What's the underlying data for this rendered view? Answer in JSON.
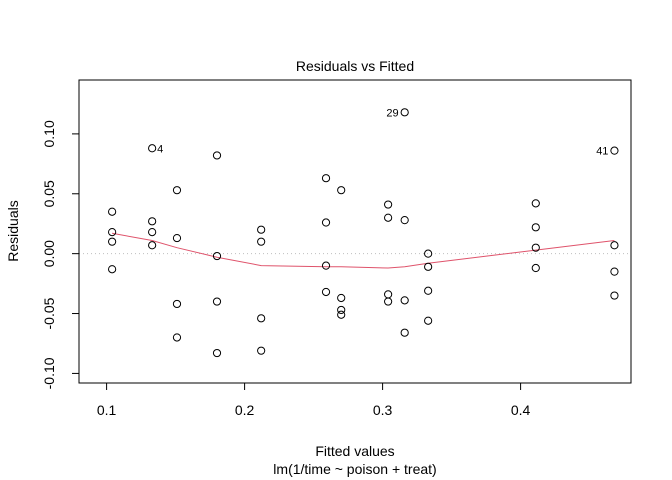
{
  "chart_data": {
    "type": "scatter",
    "title": "Residuals vs Fitted",
    "xlabel": "Fitted values",
    "sublabel": "lm(1/time ~ poison + treat)",
    "ylabel": "Residuals",
    "xlim": [
      0.08,
      0.48
    ],
    "ylim": [
      -0.108,
      0.145
    ],
    "x_ticks": [
      0.1,
      0.2,
      0.3,
      0.4
    ],
    "x_tick_labels": [
      "0.1",
      "0.2",
      "0.3",
      "0.4"
    ],
    "y_ticks": [
      -0.1,
      -0.05,
      0.0,
      0.05,
      0.1
    ],
    "y_tick_labels": [
      "-0.10",
      "-0.05",
      "0.00",
      "0.05",
      "0.10"
    ],
    "reference_line_y": 0,
    "grid": false,
    "colors": {
      "points": "#000000",
      "smooth": "#DF536B",
      "reference": "#BEBEBE"
    },
    "points": [
      {
        "x": 0.104,
        "y": 0.035
      },
      {
        "x": 0.104,
        "y": 0.018
      },
      {
        "x": 0.104,
        "y": 0.01
      },
      {
        "x": 0.104,
        "y": -0.013
      },
      {
        "x": 0.133,
        "y": 0.088,
        "label": "4"
      },
      {
        "x": 0.133,
        "y": 0.027
      },
      {
        "x": 0.133,
        "y": 0.018
      },
      {
        "x": 0.133,
        "y": 0.007
      },
      {
        "x": 0.151,
        "y": 0.053
      },
      {
        "x": 0.151,
        "y": 0.013
      },
      {
        "x": 0.151,
        "y": -0.042
      },
      {
        "x": 0.151,
        "y": -0.07
      },
      {
        "x": 0.18,
        "y": 0.082
      },
      {
        "x": 0.18,
        "y": -0.002
      },
      {
        "x": 0.18,
        "y": -0.04
      },
      {
        "x": 0.18,
        "y": -0.083
      },
      {
        "x": 0.212,
        "y": 0.02
      },
      {
        "x": 0.212,
        "y": 0.01
      },
      {
        "x": 0.212,
        "y": -0.054
      },
      {
        "x": 0.212,
        "y": -0.081
      },
      {
        "x": 0.259,
        "y": 0.063
      },
      {
        "x": 0.259,
        "y": 0.026
      },
      {
        "x": 0.259,
        "y": -0.01
      },
      {
        "x": 0.259,
        "y": -0.032
      },
      {
        "x": 0.27,
        "y": 0.053
      },
      {
        "x": 0.27,
        "y": -0.037
      },
      {
        "x": 0.27,
        "y": -0.047
      },
      {
        "x": 0.27,
        "y": -0.051
      },
      {
        "x": 0.304,
        "y": 0.041
      },
      {
        "x": 0.304,
        "y": 0.03
      },
      {
        "x": 0.304,
        "y": -0.034
      },
      {
        "x": 0.304,
        "y": -0.04
      },
      {
        "x": 0.316,
        "y": 0.118,
        "label": "29"
      },
      {
        "x": 0.316,
        "y": 0.028
      },
      {
        "x": 0.316,
        "y": -0.039
      },
      {
        "x": 0.316,
        "y": -0.066
      },
      {
        "x": 0.333,
        "y": 0.0
      },
      {
        "x": 0.333,
        "y": -0.011
      },
      {
        "x": 0.333,
        "y": -0.031
      },
      {
        "x": 0.333,
        "y": -0.056
      },
      {
        "x": 0.411,
        "y": 0.042
      },
      {
        "x": 0.411,
        "y": 0.022
      },
      {
        "x": 0.411,
        "y": 0.005
      },
      {
        "x": 0.411,
        "y": -0.012
      },
      {
        "x": 0.468,
        "y": 0.086,
        "label": "41"
      },
      {
        "x": 0.468,
        "y": 0.007
      },
      {
        "x": 0.468,
        "y": -0.015
      },
      {
        "x": 0.468,
        "y": -0.035
      }
    ],
    "smooth": [
      {
        "x": 0.104,
        "y": 0.017
      },
      {
        "x": 0.133,
        "y": 0.011
      },
      {
        "x": 0.151,
        "y": 0.005
      },
      {
        "x": 0.18,
        "y": -0.003
      },
      {
        "x": 0.212,
        "y": -0.01
      },
      {
        "x": 0.259,
        "y": -0.011
      },
      {
        "x": 0.27,
        "y": -0.011
      },
      {
        "x": 0.304,
        "y": -0.012
      },
      {
        "x": 0.316,
        "y": -0.011
      },
      {
        "x": 0.333,
        "y": -0.008
      },
      {
        "x": 0.411,
        "y": 0.003
      },
      {
        "x": 0.468,
        "y": 0.011
      }
    ]
  }
}
